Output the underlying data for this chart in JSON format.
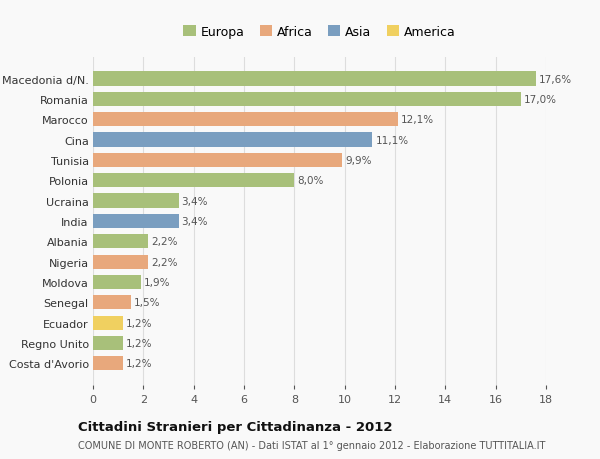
{
  "categories": [
    "Macedonia d/N.",
    "Romania",
    "Marocco",
    "Cina",
    "Tunisia",
    "Polonia",
    "Ucraina",
    "India",
    "Albania",
    "Nigeria",
    "Moldova",
    "Senegal",
    "Ecuador",
    "Regno Unito",
    "Costa d'Avorio"
  ],
  "values": [
    17.6,
    17.0,
    12.1,
    11.1,
    9.9,
    8.0,
    3.4,
    3.4,
    2.2,
    2.2,
    1.9,
    1.5,
    1.2,
    1.2,
    1.2
  ],
  "labels": [
    "17,6%",
    "17,0%",
    "12,1%",
    "11,1%",
    "9,9%",
    "8,0%",
    "3,4%",
    "3,4%",
    "2,2%",
    "2,2%",
    "1,9%",
    "1,5%",
    "1,2%",
    "1,2%",
    "1,2%"
  ],
  "continents": [
    "Europa",
    "Europa",
    "Africa",
    "Asia",
    "Africa",
    "Europa",
    "Europa",
    "Asia",
    "Europa",
    "Africa",
    "Europa",
    "Africa",
    "America",
    "Europa",
    "Africa"
  ],
  "colors": {
    "Europa": "#a8c07a",
    "Africa": "#e8a87c",
    "Asia": "#7a9ec0",
    "America": "#f0d060"
  },
  "xlim": [
    0,
    18
  ],
  "xticks": [
    0,
    2,
    4,
    6,
    8,
    10,
    12,
    14,
    16,
    18
  ],
  "title": "Cittadini Stranieri per Cittadinanza - 2012",
  "subtitle": "COMUNE DI MONTE ROBERTO (AN) - Dati ISTAT al 1° gennaio 2012 - Elaborazione TUTTITALIA.IT",
  "background_color": "#f9f9f9",
  "grid_color": "#dddddd",
  "legend_order": [
    "Europa",
    "Africa",
    "Asia",
    "America"
  ]
}
